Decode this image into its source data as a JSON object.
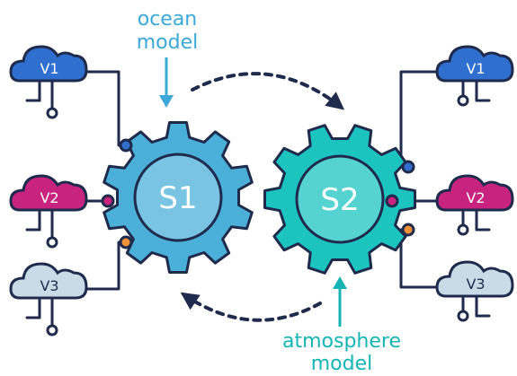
{
  "labels": {
    "ocean_line1": "ocean",
    "ocean_line2": "model",
    "atmosphere_line1": "atmosphere",
    "atmosphere_line2": "model",
    "gear_s1": "S1",
    "gear_s2": "S2"
  },
  "clouds": {
    "left": [
      "V1",
      "V2",
      "V3"
    ],
    "right": [
      "V1",
      "V2",
      "V3"
    ]
  },
  "colors": {
    "outline": "#1f2b4d",
    "gear_s1": "#4bb0d9",
    "gear_s2": "#1cc4c0",
    "cloud_v1": "#2f6fd0",
    "cloud_v2": "#c8237f",
    "cloud_v3": "#c9dbe6",
    "ocean_text": "#3aa8d8",
    "atmosphere_text": "#15b4b4",
    "dot_blue": "#2f6fd0",
    "dot_magenta": "#c8237f",
    "dot_orange": "#f0913a"
  }
}
